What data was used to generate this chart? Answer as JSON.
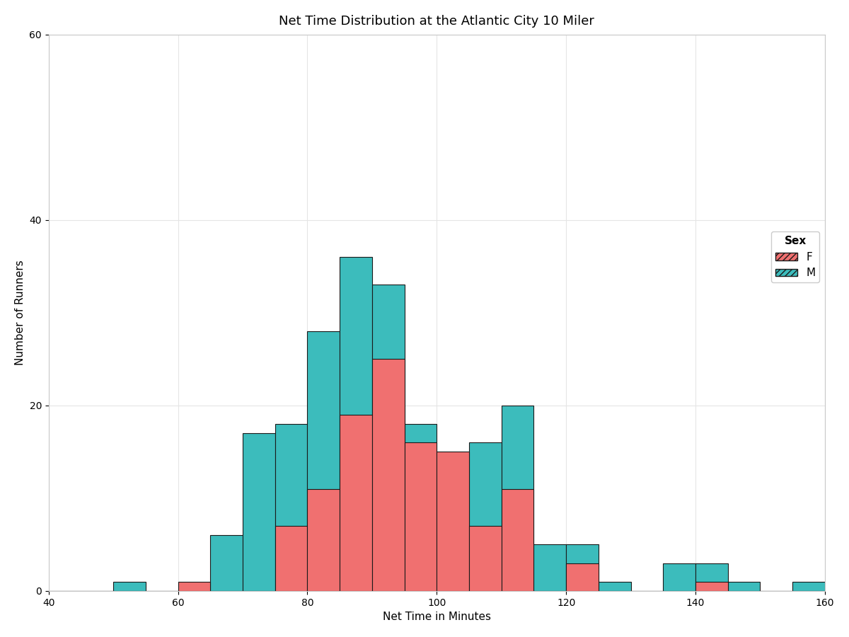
{
  "title": "Net Time Distribution at the Atlantic City 10 Miler",
  "xlabel": "Net Time in Minutes",
  "ylabel": "Number of Runners",
  "xlim": [
    40,
    160
  ],
  "ylim": [
    0,
    60
  ],
  "bin_edges": [
    40,
    45,
    50,
    55,
    60,
    65,
    70,
    75,
    80,
    85,
    90,
    95,
    100,
    105,
    110,
    115,
    120,
    125,
    130,
    135,
    140,
    145,
    150,
    155,
    160
  ],
  "female_counts": [
    0,
    0,
    0,
    0,
    1,
    0,
    0,
    7,
    11,
    19,
    25,
    16,
    15,
    7,
    11,
    0,
    3,
    0,
    0,
    0,
    1,
    0,
    0,
    0
  ],
  "male_counts": [
    0,
    0,
    1,
    0,
    0,
    6,
    17,
    18,
    28,
    36,
    33,
    18,
    9,
    16,
    20,
    5,
    5,
    1,
    0,
    3,
    3,
    1,
    0,
    1
  ],
  "female_color": "#F07070",
  "male_color": "#3CBCBC",
  "edge_color": "#1a1a1a",
  "background_color": "#ffffff",
  "grid_color": "#e5e5e5",
  "title_fontsize": 13,
  "label_fontsize": 11,
  "tick_fontsize": 10,
  "legend_title": "Sex",
  "legend_labels": [
    "F",
    "M"
  ]
}
